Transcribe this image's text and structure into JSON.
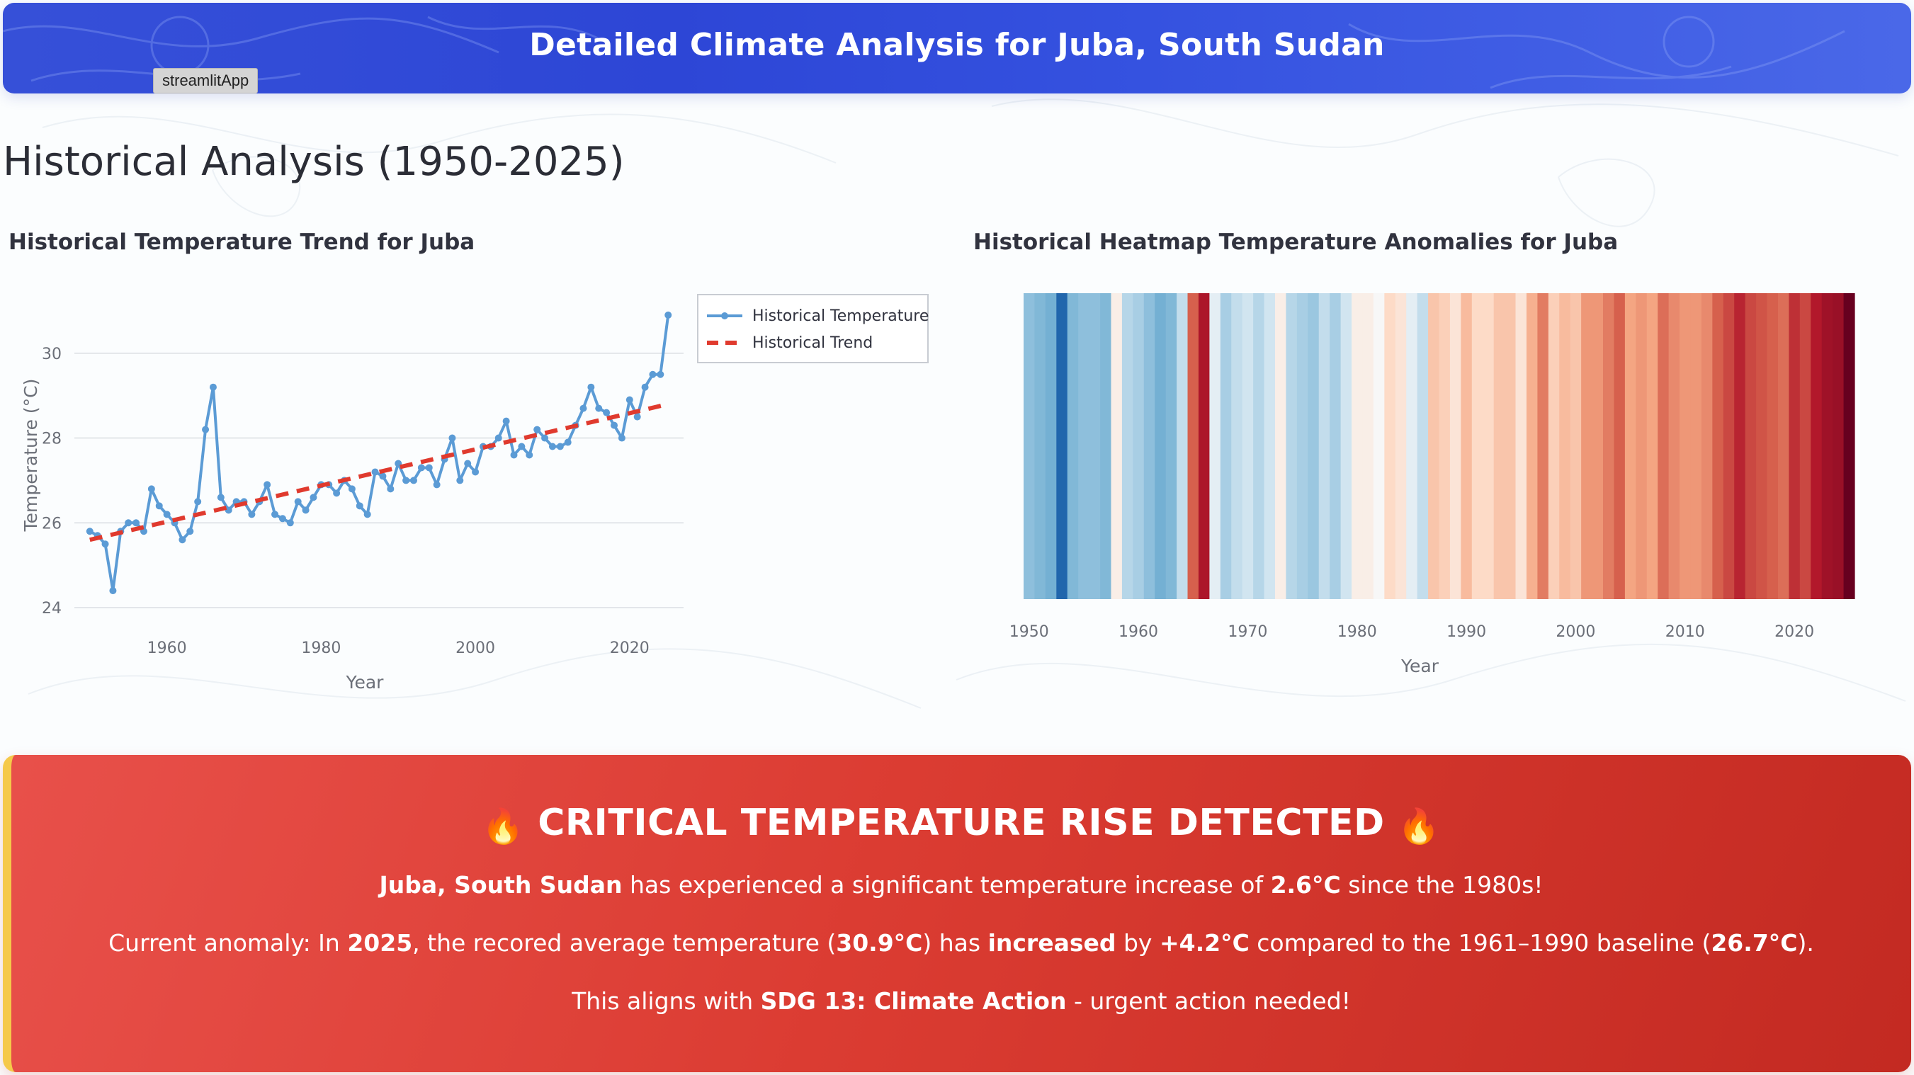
{
  "header": {
    "title": "Detailed Climate Analysis for Juba, South Sudan",
    "app_badge": "streamlitApp"
  },
  "section_title": "Historical Analysis (1950-2025)",
  "colors": {
    "banner": "#2d46d6",
    "line": "#5b9bd5",
    "trend": "#e03a2e",
    "alert": "#db3c32",
    "alert_accent": "#f5c94a"
  },
  "line_chart": {
    "title": "Historical Temperature Trend for Juba",
    "chart_data": {
      "type": "line",
      "xlabel": "Year",
      "ylabel": "Temperature (°C)",
      "xlim": [
        1948,
        2027
      ],
      "ylim": [
        23.8,
        31.4
      ],
      "xticks": [
        1960,
        1980,
        2000,
        2020
      ],
      "yticks": [
        24,
        26,
        28,
        30
      ],
      "grid": true,
      "legend_position": "top-right",
      "series": [
        {
          "name": "Historical Temperature",
          "style": "line+markers",
          "x": [
            1950,
            1951,
            1952,
            1953,
            1954,
            1955,
            1956,
            1957,
            1958,
            1959,
            1960,
            1961,
            1962,
            1963,
            1964,
            1965,
            1966,
            1967,
            1968,
            1969,
            1970,
            1971,
            1972,
            1973,
            1974,
            1975,
            1976,
            1977,
            1978,
            1979,
            1980,
            1981,
            1982,
            1983,
            1984,
            1985,
            1986,
            1987,
            1988,
            1989,
            1990,
            1991,
            1992,
            1993,
            1994,
            1995,
            1996,
            1997,
            1998,
            1999,
            2000,
            2001,
            2002,
            2003,
            2004,
            2005,
            2006,
            2007,
            2008,
            2009,
            2010,
            2011,
            2012,
            2013,
            2014,
            2015,
            2016,
            2017,
            2018,
            2019,
            2020,
            2021,
            2022,
            2023,
            2024,
            2025
          ],
          "y": [
            25.8,
            25.7,
            25.5,
            24.4,
            25.8,
            26.0,
            26.0,
            25.8,
            26.8,
            26.4,
            26.2,
            26.0,
            25.6,
            25.8,
            26.5,
            28.2,
            29.2,
            26.6,
            26.3,
            26.5,
            26.5,
            26.2,
            26.5,
            26.9,
            26.2,
            26.1,
            26.0,
            26.5,
            26.3,
            26.6,
            26.9,
            26.9,
            26.7,
            27.0,
            26.8,
            26.4,
            26.2,
            27.2,
            27.1,
            26.8,
            27.4,
            27.0,
            27.0,
            27.3,
            27.3,
            26.9,
            27.5,
            28.0,
            27.0,
            27.4,
            27.2,
            27.8,
            27.8,
            28.0,
            28.4,
            27.6,
            27.8,
            27.6,
            28.2,
            28.0,
            27.8,
            27.8,
            27.9,
            28.3,
            28.7,
            29.2,
            28.7,
            28.6,
            28.3,
            28.0,
            28.9,
            28.5,
            29.2,
            29.5,
            29.5,
            30.9
          ]
        },
        {
          "name": "Historical Trend",
          "style": "dashed",
          "x": [
            1950,
            2025
          ],
          "y": [
            25.6,
            28.8
          ]
        }
      ]
    }
  },
  "heatmap": {
    "title": "Historical Heatmap Temperature Anomalies for Juba",
    "chart_data": {
      "type": "heatmap",
      "xlabel": "Year",
      "xlim": [
        1949.5,
        2025.5
      ],
      "xticks": [
        1950,
        1960,
        1970,
        1980,
        1990,
        2000,
        2010,
        2020
      ],
      "x": [
        1950,
        1951,
        1952,
        1953,
        1954,
        1955,
        1956,
        1957,
        1958,
        1959,
        1960,
        1961,
        1962,
        1963,
        1964,
        1965,
        1966,
        1967,
        1968,
        1969,
        1970,
        1971,
        1972,
        1973,
        1974,
        1975,
        1976,
        1977,
        1978,
        1979,
        1980,
        1981,
        1982,
        1983,
        1984,
        1985,
        1986,
        1987,
        1988,
        1989,
        1990,
        1991,
        1992,
        1993,
        1994,
        1995,
        1996,
        1997,
        1998,
        1999,
        2000,
        2001,
        2002,
        2003,
        2004,
        2005,
        2006,
        2007,
        2008,
        2009,
        2010,
        2011,
        2012,
        2013,
        2014,
        2015,
        2016,
        2017,
        2018,
        2019,
        2020,
        2021,
        2022,
        2023,
        2024,
        2025
      ],
      "anomaly": [
        -0.7,
        -0.8,
        -0.9,
        -2.0,
        -0.8,
        -0.7,
        -0.7,
        -0.8,
        0.1,
        -0.4,
        -0.5,
        -0.7,
        -0.9,
        -0.8,
        -0.3,
        1.3,
        2.0,
        -0.1,
        -0.5,
        -0.3,
        -0.2,
        -0.4,
        -0.2,
        0.1,
        -0.4,
        -0.5,
        -0.6,
        -0.3,
        -0.5,
        -0.2,
        0.1,
        0.1,
        0.0,
        0.3,
        0.2,
        -0.1,
        -0.3,
        0.5,
        0.4,
        0.2,
        0.6,
        0.3,
        0.3,
        0.5,
        0.5,
        0.2,
        0.7,
        1.1,
        0.4,
        0.6,
        0.5,
        0.9,
        0.9,
        1.1,
        1.3,
        0.8,
        0.9,
        0.8,
        1.2,
        1.0,
        0.9,
        0.9,
        1.0,
        1.3,
        1.5,
        1.8,
        1.5,
        1.4,
        1.3,
        1.2,
        1.7,
        1.5,
        1.9,
        2.2,
        2.3,
        3.1
      ],
      "colorscale": "RdBu_r"
    }
  },
  "alert": {
    "title": "CRITICAL TEMPERATURE RISE DETECTED",
    "fire_icon": "🔥",
    "line1": {
      "location": "Juba, South Sudan",
      "text_a": " has experienced a significant temperature increase of ",
      "increase": "2.6°C",
      "text_b": " since the 1980s!"
    },
    "line2": {
      "text_a": "Current anomaly: In ",
      "year": "2025",
      "text_b": ", the recored average temperature (",
      "current": "30.9°C",
      "text_c": ") has ",
      "verb": "increased",
      "text_d": " by ",
      "delta": "+4.2°C",
      "text_e": " compared to the 1961–1990 baseline (",
      "baseline": "26.7°C",
      "text_f": ")."
    },
    "line3": {
      "text_a": "This aligns with ",
      "sdg": "SDG 13: Climate Action",
      "text_b": " - urgent action needed!"
    }
  }
}
